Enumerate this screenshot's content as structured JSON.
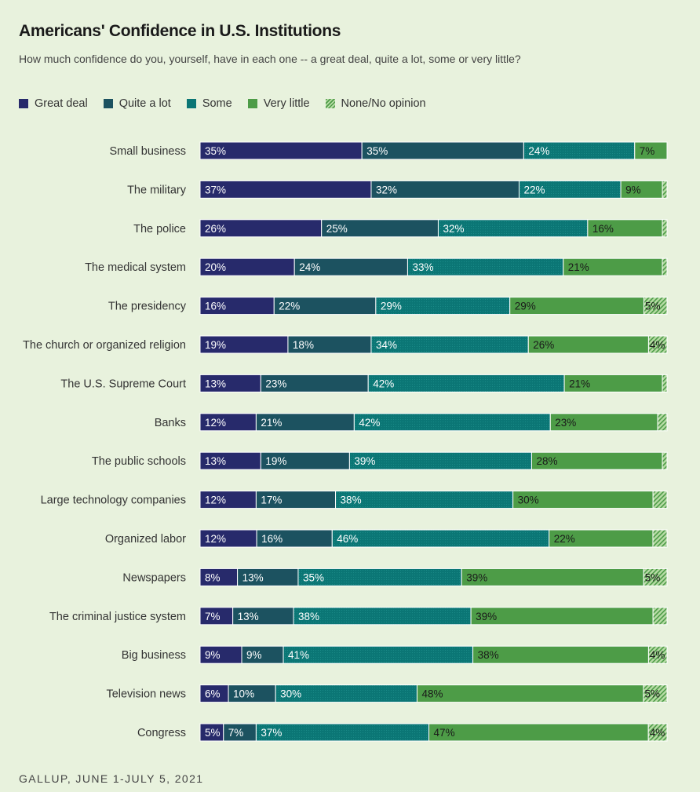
{
  "title": "Americans' Confidence in U.S. Institutions",
  "subtitle": "How much confidence do you, yourself, have in each one -- a great deal, quite a lot, some or very little?",
  "source": "GALLUP, JUNE 1-JULY 5, 2021",
  "colors": {
    "Great deal": "#272a6b",
    "Quite a lot": "#1c5260",
    "Some": "#0b7675",
    "Very little": "#4d9c47",
    "None/No opinion": "#9bce86"
  },
  "chart_data": {
    "type": "bar",
    "orientation": "horizontal-stacked",
    "categories": [
      "Small business",
      "The military",
      "The police",
      "The medical system",
      "The presidency",
      "The church or organized religion",
      "The U.S. Supreme Court",
      "Banks",
      "The public schools",
      "Large technology companies",
      "Organized labor",
      "Newspapers",
      "The criminal justice system",
      "Big business",
      "Television news",
      "Congress"
    ],
    "series": [
      {
        "name": "Great deal",
        "values": [
          35,
          37,
          26,
          20,
          16,
          19,
          13,
          12,
          13,
          12,
          12,
          8,
          7,
          9,
          6,
          5
        ]
      },
      {
        "name": "Quite a lot",
        "values": [
          35,
          32,
          25,
          24,
          22,
          18,
          23,
          21,
          19,
          17,
          16,
          13,
          13,
          9,
          10,
          7
        ]
      },
      {
        "name": "Some",
        "values": [
          24,
          22,
          32,
          33,
          29,
          34,
          42,
          42,
          39,
          38,
          46,
          35,
          38,
          41,
          30,
          37
        ]
      },
      {
        "name": "Very little",
        "values": [
          7,
          9,
          16,
          21,
          29,
          26,
          21,
          23,
          28,
          30,
          22,
          39,
          39,
          38,
          48,
          47
        ]
      },
      {
        "name": "None/No opinion",
        "values": [
          0,
          1,
          1,
          1,
          5,
          4,
          1,
          2,
          1,
          3,
          3,
          5,
          3,
          4,
          5,
          4
        ]
      }
    ],
    "labels": [
      [
        "35%",
        "35%",
        "24%",
        "7%",
        ""
      ],
      [
        "37%",
        "32%",
        "22%",
        "9%",
        ""
      ],
      [
        "26%",
        "25%",
        "32%",
        "16%",
        ""
      ],
      [
        "20%",
        "24%",
        "33%",
        "21%",
        ""
      ],
      [
        "16%",
        "22%",
        "29%",
        "29%",
        "5%"
      ],
      [
        "19%",
        "18%",
        "34%",
        "26%",
        "4%"
      ],
      [
        "13%",
        "23%",
        "42%",
        "21%",
        ""
      ],
      [
        "12%",
        "21%",
        "42%",
        "23%",
        ""
      ],
      [
        "13%",
        "19%",
        "39%",
        "28%",
        ""
      ],
      [
        "12%",
        "17%",
        "38%",
        "30%",
        ""
      ],
      [
        "12%",
        "16%",
        "46%",
        "22%",
        ""
      ],
      [
        "8%",
        "13%",
        "35%",
        "39%",
        "5%"
      ],
      [
        "7%",
        "13%",
        "38%",
        "39%",
        ""
      ],
      [
        "9%",
        "9%",
        "41%",
        "38%",
        "4%"
      ],
      [
        "6%",
        "10%",
        "30%",
        "48%",
        "5%"
      ],
      [
        "5%",
        "7%",
        "37%",
        "47%",
        "4%"
      ]
    ],
    "xlim": [
      0,
      100
    ],
    "legend_position": "top-left",
    "grid": false
  }
}
